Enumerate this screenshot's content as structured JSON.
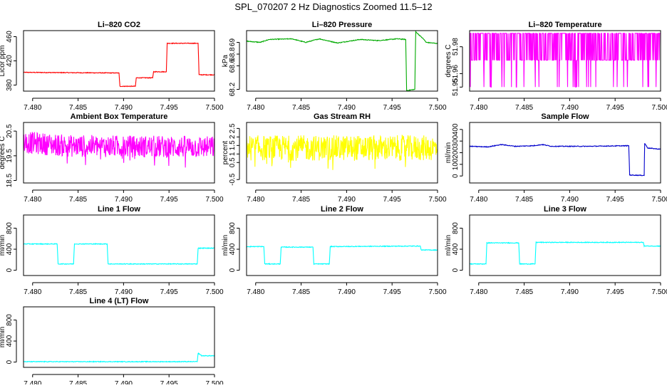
{
  "figure_title": "SPL_070207  2 Hz Diagnostics Zoomed 11.5–12",
  "chart_data": [
    {
      "type": "line",
      "title": "Li–820 CO2",
      "ylabel": "Licor ppm",
      "color": "#ff0000",
      "xlim": [
        7.479,
        7.5
      ],
      "ylim": [
        370,
        470
      ],
      "xticks": [
        "7.480",
        "7.485",
        "7.490",
        "7.495",
        "7.500"
      ],
      "yticks": [
        380,
        420,
        460
      ],
      "series": [
        {
          "name": "CO2",
          "x": [
            7.479,
            7.4895,
            7.4896,
            7.4913,
            7.4914,
            7.4932,
            7.4933,
            7.4947,
            7.4948,
            7.4982,
            7.4983,
            7.5
          ],
          "y": [
            401,
            400,
            378,
            378,
            392,
            392,
            402,
            402,
            449,
            449,
            397,
            397
          ]
        }
      ]
    },
    {
      "type": "line",
      "title": "Li–820 Pressure",
      "ylabel": "kPa",
      "color": "#00aa00",
      "xlim": [
        7.479,
        7.5
      ],
      "ylim": [
        68.17,
        69.2
      ],
      "xticks": [
        "7.480",
        "7.485",
        "7.490",
        "7.495",
        "7.500"
      ],
      "yticks": [
        68.2,
        68.6,
        68.8,
        69.0
      ],
      "series": [
        {
          "name": "Pressure",
          "x": [
            7.479,
            7.4805,
            7.4815,
            7.484,
            7.4855,
            7.487,
            7.489,
            7.4915,
            7.4935,
            7.4955,
            7.4965,
            7.4966,
            7.4975,
            7.4976,
            7.4985,
            7.49875,
            7.5
          ],
          "y": [
            69.02,
            69.0,
            69.05,
            69.06,
            69.0,
            69.06,
            68.99,
            69.05,
            69.03,
            69.06,
            69.05,
            68.18,
            68.2,
            69.18,
            69.05,
            69.0,
            68.98
          ]
        }
      ]
    },
    {
      "type": "line",
      "title": "Li–820 Temperature",
      "ylabel": "degrees C",
      "color": "#ff00ff",
      "xlim": [
        7.479,
        7.5
      ],
      "ylim": [
        51.947,
        51.992
      ],
      "xticks": [
        "7.480",
        "7.485",
        "7.490",
        "7.495",
        "7.500"
      ],
      "yticks": [
        "51.95",
        "51.96",
        "51.98"
      ],
      "series": [
        {
          "name": "Temperature",
          "noise": "telegraph",
          "base": 51.97,
          "levels": [
            51.97,
            51.99
          ],
          "dips": 51.95,
          "x": [
            7.479,
            7.5
          ],
          "y": [
            51.97,
            51.97
          ]
        }
      ]
    },
    {
      "type": "line",
      "title": "Ambient Box Temperature",
      "ylabel": "degrees C",
      "color": "#ff00ff",
      "xlim": [
        7.479,
        7.5
      ],
      "ylim": [
        18.4,
        20.85
      ],
      "xticks": [
        "7.480",
        "7.485",
        "7.490",
        "7.495",
        "7.500"
      ],
      "yticks": [
        18.5,
        19.5,
        20.5
      ],
      "series": [
        {
          "name": "Box Temperature",
          "noise": "uniform",
          "amp": 0.45,
          "spikes": 0.8,
          "x": [
            7.479,
            7.484,
            7.5
          ],
          "y": [
            20.05,
            19.9,
            19.85
          ]
        }
      ]
    },
    {
      "type": "line",
      "title": "Gas Stream RH",
      "ylabel": "percent",
      "color": "#ffff00",
      "xlim": [
        7.479,
        7.5
      ],
      "ylim": [
        -0.7,
        2.85
      ],
      "xticks": [
        "7.480",
        "7.485",
        "7.490",
        "7.495",
        "7.500"
      ],
      "yticks": [
        -0.5,
        0.5,
        1.0,
        1.5,
        2.0,
        2.5
      ],
      "series": [
        {
          "name": "RH",
          "noise": "uniform",
          "amp": 0.75,
          "spikes": 1.3,
          "x": [
            7.479,
            7.5
          ],
          "y": [
            1.35,
            1.35
          ]
        }
      ]
    },
    {
      "type": "line",
      "title": "Sample Flow",
      "ylabel": "ml/min",
      "color": "#0000cc",
      "xlim": [
        7.479,
        7.5
      ],
      "ylim": [
        -60,
        460
      ],
      "xticks": [
        "7.480",
        "7.485",
        "7.490",
        "7.495",
        "7.500"
      ],
      "yticks": [
        0,
        100,
        200,
        300,
        400
      ],
      "series": [
        {
          "name": "Sample Flow",
          "x": [
            7.479,
            7.481,
            7.4825,
            7.484,
            7.486,
            7.487,
            7.488,
            7.49,
            7.492,
            7.4965,
            7.4966,
            7.4982,
            7.49825,
            7.4986,
            7.5
          ],
          "y": [
            255,
            250,
            270,
            255,
            260,
            270,
            255,
            255,
            255,
            260,
            8,
            5,
            280,
            240,
            230
          ]
        }
      ]
    },
    {
      "type": "line",
      "title": "Line 1 Flow",
      "ylabel": "ml/min",
      "color": "#00ffff",
      "xlim": [
        7.479,
        7.5
      ],
      "ylim": [
        -100,
        1050
      ],
      "xticks": [
        "7.480",
        "7.485",
        "7.490",
        "7.495",
        "7.500"
      ],
      "yticks": [
        0,
        400,
        800
      ],
      "series": [
        {
          "name": "Line 1",
          "x": [
            7.479,
            7.4827,
            7.4828,
            7.4845,
            7.4846,
            7.4882,
            7.4883,
            7.4981,
            7.4982,
            7.5
          ],
          "y": [
            500,
            500,
            120,
            120,
            500,
            500,
            120,
            120,
            420,
            420
          ]
        }
      ]
    },
    {
      "type": "line",
      "title": "Line 2 Flow",
      "ylabel": "ml/min",
      "color": "#00ffff",
      "xlim": [
        7.479,
        7.5
      ],
      "ylim": [
        -100,
        1050
      ],
      "xticks": [
        "7.480",
        "7.485",
        "7.490",
        "7.495",
        "7.500"
      ],
      "yticks": [
        0,
        400,
        800
      ],
      "series": [
        {
          "name": "Line 2",
          "x": [
            7.479,
            7.4809,
            7.481,
            7.4827,
            7.4828,
            7.4863,
            7.4864,
            7.4881,
            7.4882,
            7.4981,
            7.4982,
            7.5
          ],
          "y": [
            450,
            450,
            120,
            120,
            440,
            440,
            120,
            120,
            450,
            460,
            385,
            385
          ]
        }
      ]
    },
    {
      "type": "line",
      "title": "Line 3 Flow",
      "ylabel": "ml/min",
      "color": "#00ffff",
      "xlim": [
        7.479,
        7.5
      ],
      "ylim": [
        -100,
        1050
      ],
      "xticks": [
        "7.480",
        "7.485",
        "7.490",
        "7.495",
        "7.500"
      ],
      "yticks": [
        0,
        400,
        800
      ],
      "series": [
        {
          "name": "Line 3",
          "x": [
            7.479,
            7.4808,
            7.4809,
            7.4844,
            7.4845,
            7.4862,
            7.4863,
            7.4981,
            7.4982,
            7.5
          ],
          "y": [
            120,
            120,
            520,
            520,
            120,
            120,
            530,
            530,
            460,
            460
          ]
        }
      ]
    },
    {
      "type": "line",
      "title": "Line 4 (LT) Flow",
      "ylabel": "ml/min",
      "color": "#00ffff",
      "xlim": [
        7.479,
        7.5
      ],
      "ylim": [
        -100,
        1050
      ],
      "xticks": [
        "7.480",
        "7.485",
        "7.490",
        "7.495",
        "7.500"
      ],
      "yticks": [
        0,
        400,
        800
      ],
      "series": [
        {
          "name": "Line 4",
          "x": [
            7.479,
            7.4981,
            7.4982,
            7.4986,
            7.5
          ],
          "y": [
            8,
            8,
            170,
            120,
            120
          ]
        }
      ]
    }
  ]
}
